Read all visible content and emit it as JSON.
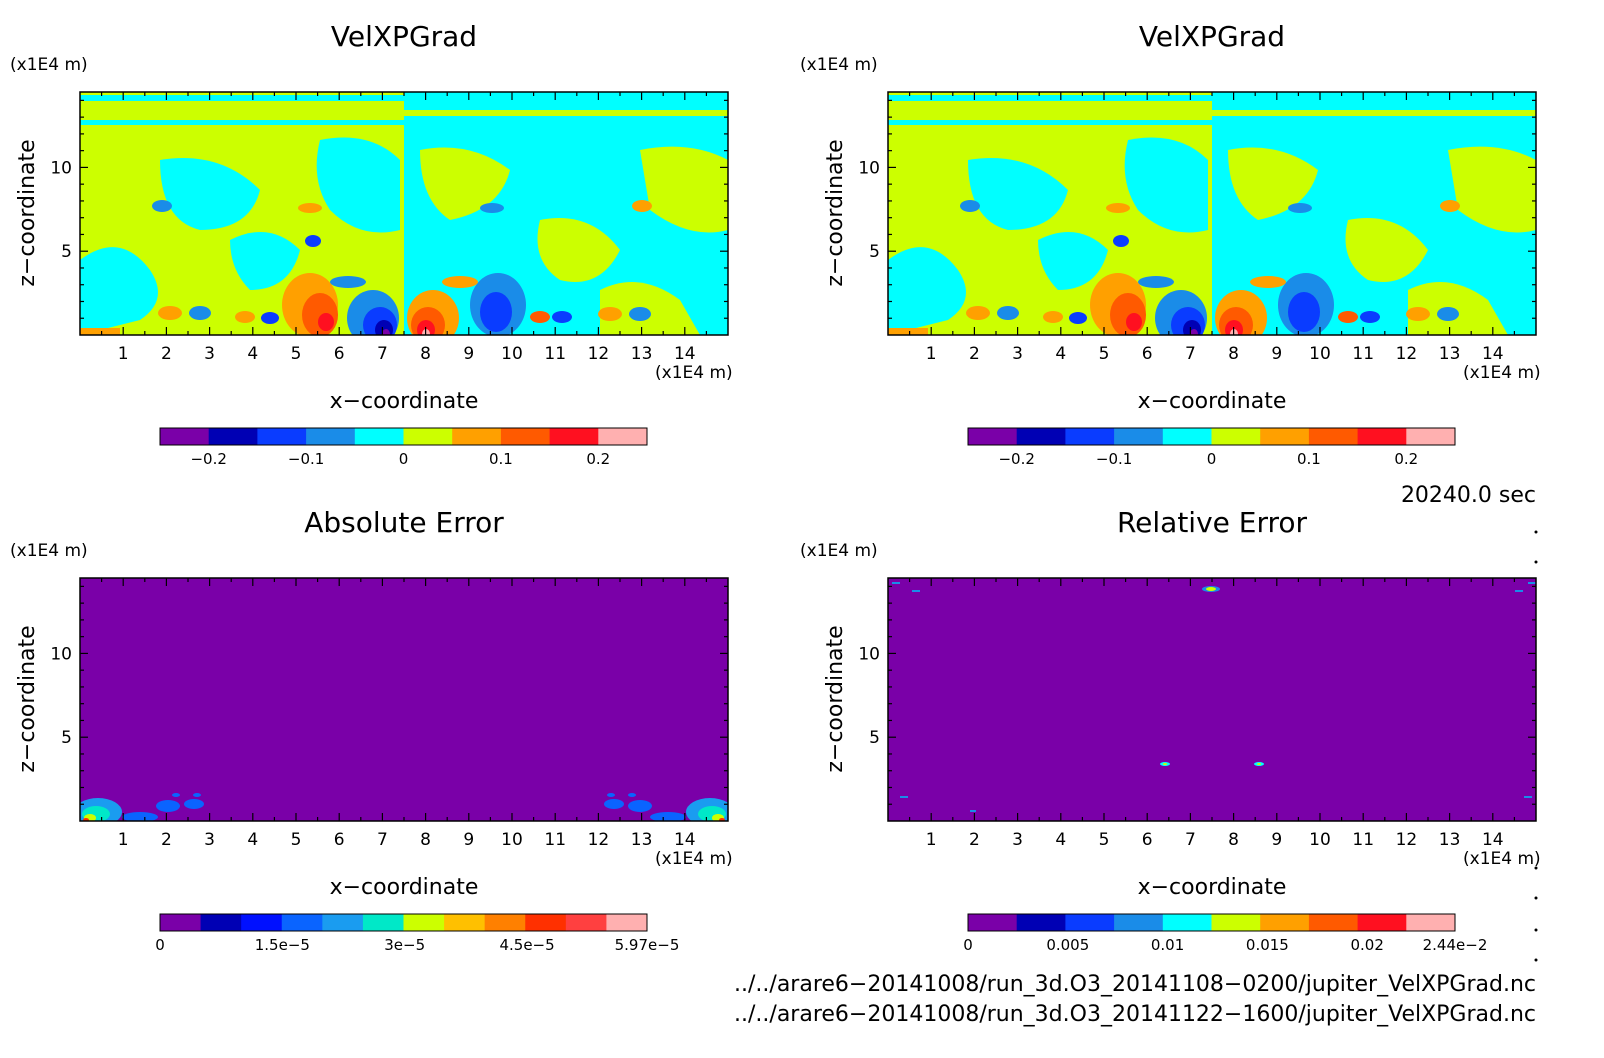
{
  "panels": [
    {
      "id": "top-left",
      "title": "VelXPGrad",
      "x_unit": "(x1E4 m)",
      "z_unit": "(x1E4 m)",
      "xlabel": "x−coordinate",
      "ylabel": "z−coordinate",
      "x_ticks": [
        "1",
        "2",
        "3",
        "4",
        "5",
        "6",
        "7",
        "8",
        "9",
        "10",
        "11",
        "12",
        "13",
        "14"
      ],
      "z_ticks": [
        "5",
        "10"
      ],
      "colorbar": {
        "colors": [
          "#7a00a8",
          "#0000b4",
          "#0a3cff",
          "#1a8ce8",
          "#00ffff",
          "#ccff00",
          "#ffa000",
          "#ff5a00",
          "#ff1020",
          "#ffb0b0"
        ],
        "ticks": [
          "−0.2",
          "−0.1",
          "0",
          "0.1",
          "0.2"
        ]
      }
    },
    {
      "id": "top-right",
      "title": "VelXPGrad",
      "x_unit": "(x1E4 m)",
      "z_unit": "(x1E4 m)",
      "xlabel": "x−coordinate",
      "ylabel": "z−coordinate",
      "x_ticks": [
        "1",
        "2",
        "3",
        "4",
        "5",
        "6",
        "7",
        "8",
        "9",
        "10",
        "11",
        "12",
        "13",
        "14"
      ],
      "z_ticks": [
        "5",
        "10"
      ],
      "colorbar": {
        "colors": [
          "#7a00a8",
          "#0000b4",
          "#0a3cff",
          "#1a8ce8",
          "#00ffff",
          "#ccff00",
          "#ffa000",
          "#ff5a00",
          "#ff1020",
          "#ffb0b0"
        ],
        "ticks": [
          "−0.2",
          "−0.1",
          "0",
          "0.1",
          "0.2"
        ]
      }
    },
    {
      "id": "bottom-left",
      "title": "Absolute Error",
      "x_unit": "(x1E4 m)",
      "z_unit": "(x1E4 m)",
      "xlabel": "x−coordinate",
      "ylabel": "z−coordinate",
      "x_ticks": [
        "1",
        "2",
        "3",
        "4",
        "5",
        "6",
        "7",
        "8",
        "9",
        "10",
        "11",
        "12",
        "13",
        "14"
      ],
      "z_ticks": [
        "5",
        "10"
      ],
      "colorbar": {
        "colors": [
          "#7a00a8",
          "#0000b4",
          "#0010ff",
          "#0a64ff",
          "#1a9cf0",
          "#00e8c8",
          "#ccff00",
          "#ffc000",
          "#ff8000",
          "#ff3000",
          "#ff4040",
          "#ffb0b0"
        ],
        "ticks": [
          "0",
          "1.5e−5",
          "3e−5",
          "4.5e−5",
          "5.97e−5"
        ]
      }
    },
    {
      "id": "bottom-right",
      "title": "Relative Error",
      "x_unit": "(x1E4 m)",
      "z_unit": "(x1E4 m)",
      "xlabel": "x−coordinate",
      "ylabel": "z−coordinate",
      "x_ticks": [
        "1",
        "2",
        "3",
        "4",
        "5",
        "6",
        "7",
        "8",
        "9",
        "10",
        "11",
        "12",
        "13",
        "14"
      ],
      "z_ticks": [
        "5",
        "10"
      ],
      "colorbar": {
        "colors": [
          "#7a00a8",
          "#0000b4",
          "#0a3cff",
          "#1a8ce8",
          "#00ffff",
          "#ccff00",
          "#ffa000",
          "#ff5a00",
          "#ff1020",
          "#ffb0b0"
        ],
        "ticks": [
          "0",
          "0.005",
          "0.01",
          "0.015",
          "0.02",
          "2.44e−2"
        ]
      }
    }
  ],
  "time_label": "20240.0 sec",
  "files": [
    "../../arare6−20141008/run_3d.O3_20141108−0200/jupiter_VelXPGrad.nc",
    "../../arare6−20141008/run_3d.O3_20141122−1600/jupiter_VelXPGrad.nc"
  ],
  "chart_data": [
    {
      "type": "heatmap",
      "title": "VelXPGrad",
      "xlabel": "x−coordinate",
      "ylabel": "z−coordinate",
      "x_unit": "(x1E4 m)",
      "z_unit": "(x1E4 m)",
      "xlim": [
        0,
        15
      ],
      "zlim": [
        0,
        14.5
      ],
      "x_ticks": [
        1,
        2,
        3,
        4,
        5,
        6,
        7,
        8,
        9,
        10,
        11,
        12,
        13,
        14
      ],
      "z_ticks": [
        5,
        10
      ],
      "colorbar_range": [
        -0.25,
        0.25
      ],
      "colorbar_ticks": [
        -0.2,
        -0.1,
        0,
        0.1,
        0.2
      ],
      "levels": 10,
      "background_values": [
        {
          "region": "x < 7.5",
          "value_range": [
            0,
            0.05
          ]
        },
        {
          "region": "x > 7.5",
          "value_range": [
            -0.05,
            0
          ]
        }
      ],
      "features": [
        {
          "x": 5.9,
          "z": 1.3,
          "value": 0.2
        },
        {
          "x": 7.0,
          "z": 0.8,
          "value": -0.25
        },
        {
          "x": 8.0,
          "z": 0.8,
          "value": 0.25
        },
        {
          "x": 9.3,
          "z": 1.6,
          "value": -0.2
        },
        {
          "x": 2.1,
          "z": 1.3,
          "value": 0.1
        },
        {
          "x": 2.8,
          "z": 1.3,
          "value": -0.05
        },
        {
          "x": 3.8,
          "z": 1.1,
          "value": 0.1
        },
        {
          "x": 4.4,
          "z": 1.0,
          "value": -0.15
        },
        {
          "x": 10.6,
          "z": 1.0,
          "value": 0.15
        },
        {
          "x": 11.2,
          "z": 1.1,
          "value": -0.1
        },
        {
          "x": 12.1,
          "z": 1.3,
          "value": 0.1
        },
        {
          "x": 12.9,
          "z": 1.3,
          "value": -0.05
        }
      ]
    },
    {
      "type": "heatmap",
      "title": "VelXPGrad",
      "xlabel": "x−coordinate",
      "ylabel": "z−coordinate",
      "x_unit": "(x1E4 m)",
      "z_unit": "(x1E4 m)",
      "xlim": [
        0,
        15
      ],
      "zlim": [
        0,
        14.5
      ],
      "x_ticks": [
        1,
        2,
        3,
        4,
        5,
        6,
        7,
        8,
        9,
        10,
        11,
        12,
        13,
        14
      ],
      "z_ticks": [
        5,
        10
      ],
      "colorbar_range": [
        -0.25,
        0.25
      ],
      "colorbar_ticks": [
        -0.2,
        -0.1,
        0,
        0.1,
        0.2
      ],
      "levels": 10,
      "background_values": [
        {
          "region": "x < 7.5",
          "value_range": [
            0,
            0.05
          ]
        },
        {
          "region": "x > 7.5",
          "value_range": [
            -0.05,
            0
          ]
        }
      ],
      "features": [
        {
          "x": 5.9,
          "z": 1.3,
          "value": 0.2
        },
        {
          "x": 7.0,
          "z": 0.8,
          "value": -0.25
        },
        {
          "x": 8.0,
          "z": 0.8,
          "value": 0.25
        },
        {
          "x": 9.3,
          "z": 1.6,
          "value": -0.2
        },
        {
          "x": 2.1,
          "z": 1.3,
          "value": 0.1
        },
        {
          "x": 2.8,
          "z": 1.3,
          "value": -0.05
        },
        {
          "x": 3.8,
          "z": 1.1,
          "value": 0.1
        },
        {
          "x": 4.4,
          "z": 1.0,
          "value": -0.15
        },
        {
          "x": 10.6,
          "z": 1.0,
          "value": 0.15
        },
        {
          "x": 11.2,
          "z": 1.1,
          "value": -0.1
        },
        {
          "x": 12.1,
          "z": 1.3,
          "value": 0.1
        },
        {
          "x": 12.9,
          "z": 1.3,
          "value": -0.05
        }
      ]
    },
    {
      "type": "heatmap",
      "title": "Absolute Error",
      "xlabel": "x−coordinate",
      "ylabel": "z−coordinate",
      "x_unit": "(x1E4 m)",
      "z_unit": "(x1E4 m)",
      "xlim": [
        0,
        15
      ],
      "zlim": [
        0,
        14.5
      ],
      "colorbar_range": [
        0,
        5.97e-05
      ],
      "colorbar_ticks": [
        0,
        1.5e-05,
        3e-05,
        4.5e-05,
        5.97e-05
      ],
      "levels": 12,
      "background_value": 0,
      "features": [
        {
          "x": 0.4,
          "z": 0.7,
          "value": 3e-05
        },
        {
          "x": 2.1,
          "z": 0.9,
          "value": 1e-05
        },
        {
          "x": 2.6,
          "z": 0.9,
          "value": 1e-05
        },
        {
          "x": 12.4,
          "z": 0.9,
          "value": 1e-05
        },
        {
          "x": 12.9,
          "z": 0.9,
          "value": 1e-05
        },
        {
          "x": 14.6,
          "z": 0.7,
          "value": 3e-05
        }
      ]
    },
    {
      "type": "heatmap",
      "title": "Relative Error",
      "xlabel": "x−coordinate",
      "ylabel": "z−coordinate",
      "x_unit": "(x1E4 m)",
      "z_unit": "(x1E4 m)",
      "xlim": [
        0,
        15
      ],
      "zlim": [
        0,
        14.5
      ],
      "colorbar_range": [
        0,
        0.0244
      ],
      "colorbar_ticks": [
        0,
        0.005,
        0.01,
        0.015,
        0.02,
        0.0244
      ],
      "levels": 10,
      "background_value": 0,
      "features": [
        {
          "x": 7.5,
          "z": 14.0,
          "value": 0.015
        },
        {
          "x": 6.4,
          "z": 3.5,
          "value": 0.02
        },
        {
          "x": 8.6,
          "z": 3.5,
          "value": 0.02
        }
      ]
    }
  ]
}
